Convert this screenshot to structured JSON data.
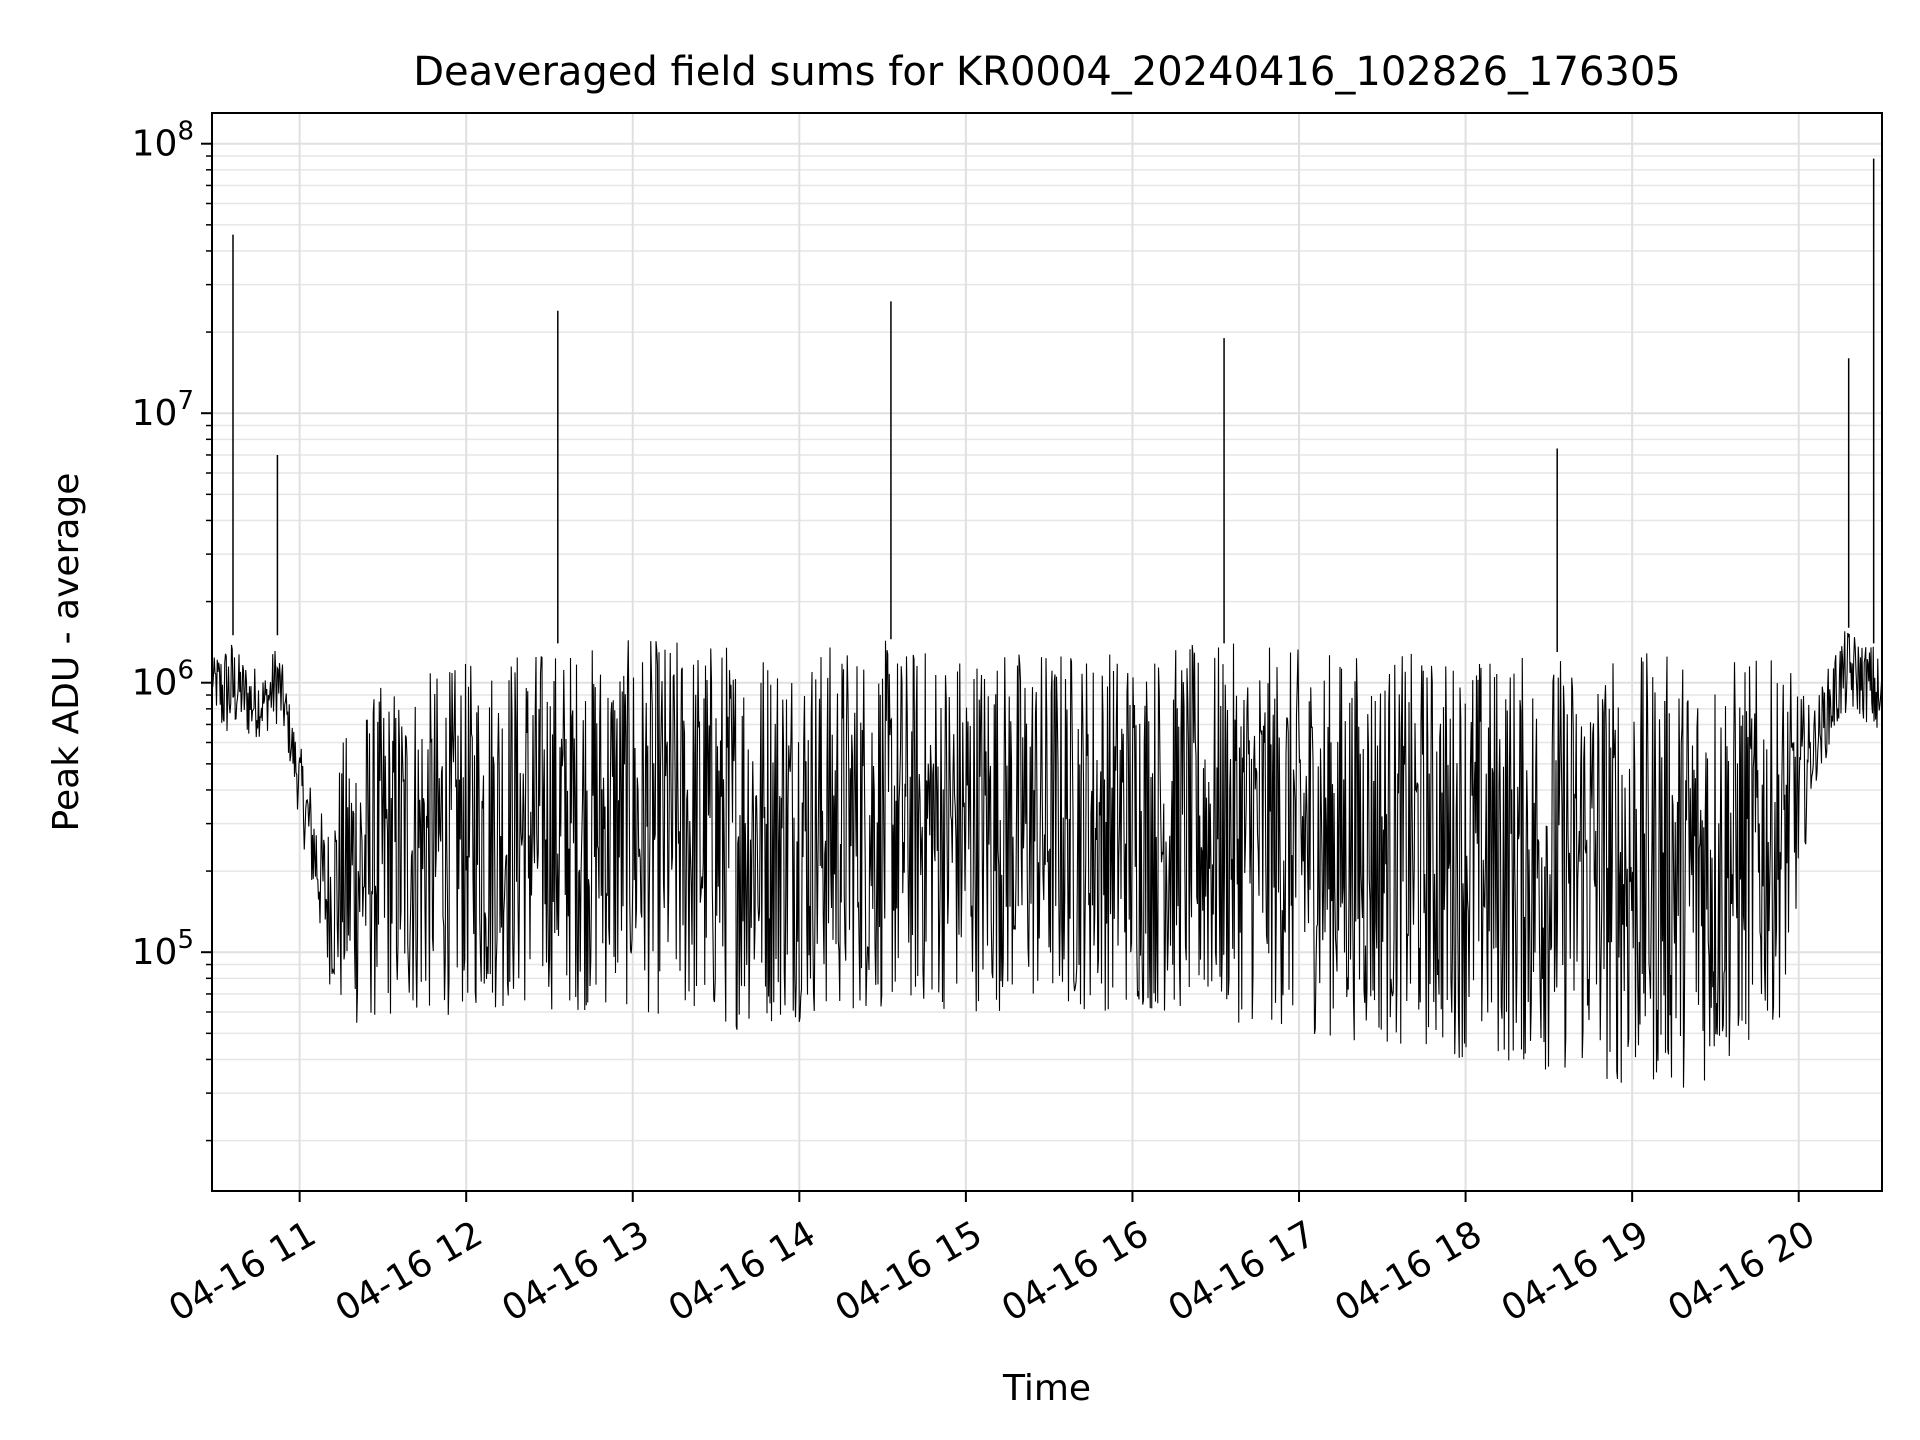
{
  "chart_data": {
    "type": "line",
    "title": "Deaveraged field sums for KR0004_20240416_102826_176305",
    "xlabel": "Time",
    "ylabel": "Peak ADU - average",
    "yscale": "log",
    "xlim": [
      "2024-04-16T10:28:26",
      "2024-04-16T20:30:00"
    ],
    "ylim": [
      13000,
      130000000
    ],
    "grid": true,
    "x_ticks": [
      "04-16 11",
      "04-16 12",
      "04-16 13",
      "04-16 14",
      "04-16 15",
      "04-16 16",
      "04-16 17",
      "04-16 18",
      "04-16 19",
      "04-16 20"
    ],
    "y_ticks": [
      {
        "base": "10",
        "exp": "5",
        "value": 100000
      },
      {
        "base": "10",
        "exp": "6",
        "value": 1000000
      },
      {
        "base": "10",
        "exp": "7",
        "value": 10000000
      },
      {
        "base": "10",
        "exp": "8",
        "value": 100000000
      }
    ],
    "series": [
      {
        "color": "#000000",
        "x": [
          "2024-04-16T10:28:26",
          "2024-04-16T10:32",
          "2024-04-16T10:36",
          "2024-04-16T10:38",
          "2024-04-16T10:42",
          "2024-04-16T10:48",
          "2024-04-16T10:52",
          "2024-04-16T10:55",
          "2024-04-16T10:58",
          "2024-04-16T11:05",
          "2024-04-16T11:10",
          "2024-04-16T11:15",
          "2024-04-16T11:20",
          "2024-04-16T11:30",
          "2024-04-16T11:45",
          "2024-04-16T12:00",
          "2024-04-16T12:15",
          "2024-04-16T12:30",
          "2024-04-16T12:33",
          "2024-04-16T12:36",
          "2024-04-16T13:00",
          "2024-04-16T13:15",
          "2024-04-16T13:30",
          "2024-04-16T14:00",
          "2024-04-16T14:30",
          "2024-04-16T14:33",
          "2024-04-16T14:36",
          "2024-04-16T15:00",
          "2024-04-16T15:30",
          "2024-04-16T16:00",
          "2024-04-16T16:30",
          "2024-04-16T16:33",
          "2024-04-16T16:36",
          "2024-04-16T17:00",
          "2024-04-16T17:30",
          "2024-04-16T18:00",
          "2024-04-16T18:30",
          "2024-04-16T18:33",
          "2024-04-16T18:36",
          "2024-04-16T19:00",
          "2024-04-16T19:30",
          "2024-04-16T19:55",
          "2024-04-16T20:05",
          "2024-04-16T20:15",
          "2024-04-16T20:18",
          "2024-04-16T20:21",
          "2024-04-16T20:25",
          "2024-04-16T20:27",
          "2024-04-16T20:30"
        ],
        "y": [
          900000,
          700000,
          46000000,
          900000,
          700000,
          900000,
          7000000,
          900000,
          550000,
          300000,
          150000,
          80000,
          70000,
          75000,
          70000,
          80000,
          600000,
          700000,
          24000000,
          700000,
          700000,
          500000,
          500000,
          600000,
          700000,
          26000000,
          600000,
          600000,
          600000,
          700000,
          600000,
          19000000,
          600000,
          400000,
          300000,
          200000,
          150000,
          7400000,
          150000,
          100000,
          150000,
          400000,
          600000,
          1000000,
          16000000,
          900000,
          1000000,
          88000000,
          600000
        ],
        "band_low": [
          900000,
          600000,
          600000,
          700000,
          600000,
          650000,
          700000,
          600000,
          400000,
          150000,
          80000,
          55000,
          50000,
          55000,
          55000,
          60000,
          60000,
          60000,
          60000,
          60000,
          60000,
          55000,
          50000,
          55000,
          60000,
          60000,
          60000,
          60000,
          60000,
          60000,
          55000,
          55000,
          55000,
          50000,
          45000,
          40000,
          35000,
          35000,
          35000,
          30000,
          32000,
          60000,
          400000,
          700000,
          750000,
          750000,
          700000,
          650000,
          500000
        ],
        "band_high": [
          1200000,
          1400000,
          1500000,
          1300000,
          1200000,
          1100000,
          1500000,
          1000000,
          700000,
          400000,
          300000,
          600000,
          800000,
          1000000,
          1100000,
          1200000,
          1400000,
          1400000,
          1400000,
          1400000,
          1450000,
          1500000,
          1500000,
          1450000,
          1450000,
          1450000,
          1400000,
          1400000,
          1400000,
          1400000,
          1400000,
          1400000,
          1400000,
          1350000,
          1300000,
          1300000,
          1300000,
          1300000,
          1300000,
          1300000,
          1300000,
          1200000,
          800000,
          1500000,
          1600000,
          1500000,
          1400000,
          1400000,
          1200000
        ]
      }
    ]
  }
}
